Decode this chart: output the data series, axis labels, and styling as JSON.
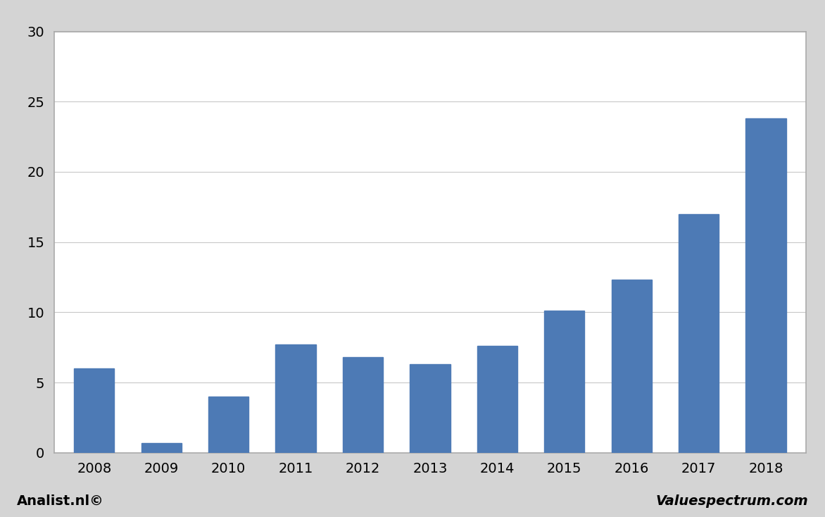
{
  "categories": [
    "2008",
    "2009",
    "2010",
    "2011",
    "2012",
    "2013",
    "2014",
    "2015",
    "2016",
    "2017",
    "2018"
  ],
  "values": [
    6.0,
    0.7,
    4.0,
    7.7,
    6.8,
    6.3,
    7.6,
    10.1,
    12.3,
    17.0,
    23.8
  ],
  "bar_color": "#4d7ab5",
  "ylim": [
    0,
    30
  ],
  "yticks": [
    0,
    5,
    10,
    15,
    20,
    25,
    30
  ],
  "figure_bg_color": "#d4d4d4",
  "plot_bg_color": "#ffffff",
  "grid_color": "#c8c8c8",
  "spine_color": "#aaaaaa",
  "footer_left": "Analist.nl©",
  "footer_right": "Valuespectrum.com",
  "footer_fontsize": 14,
  "tick_fontsize": 14,
  "bar_width": 0.6
}
